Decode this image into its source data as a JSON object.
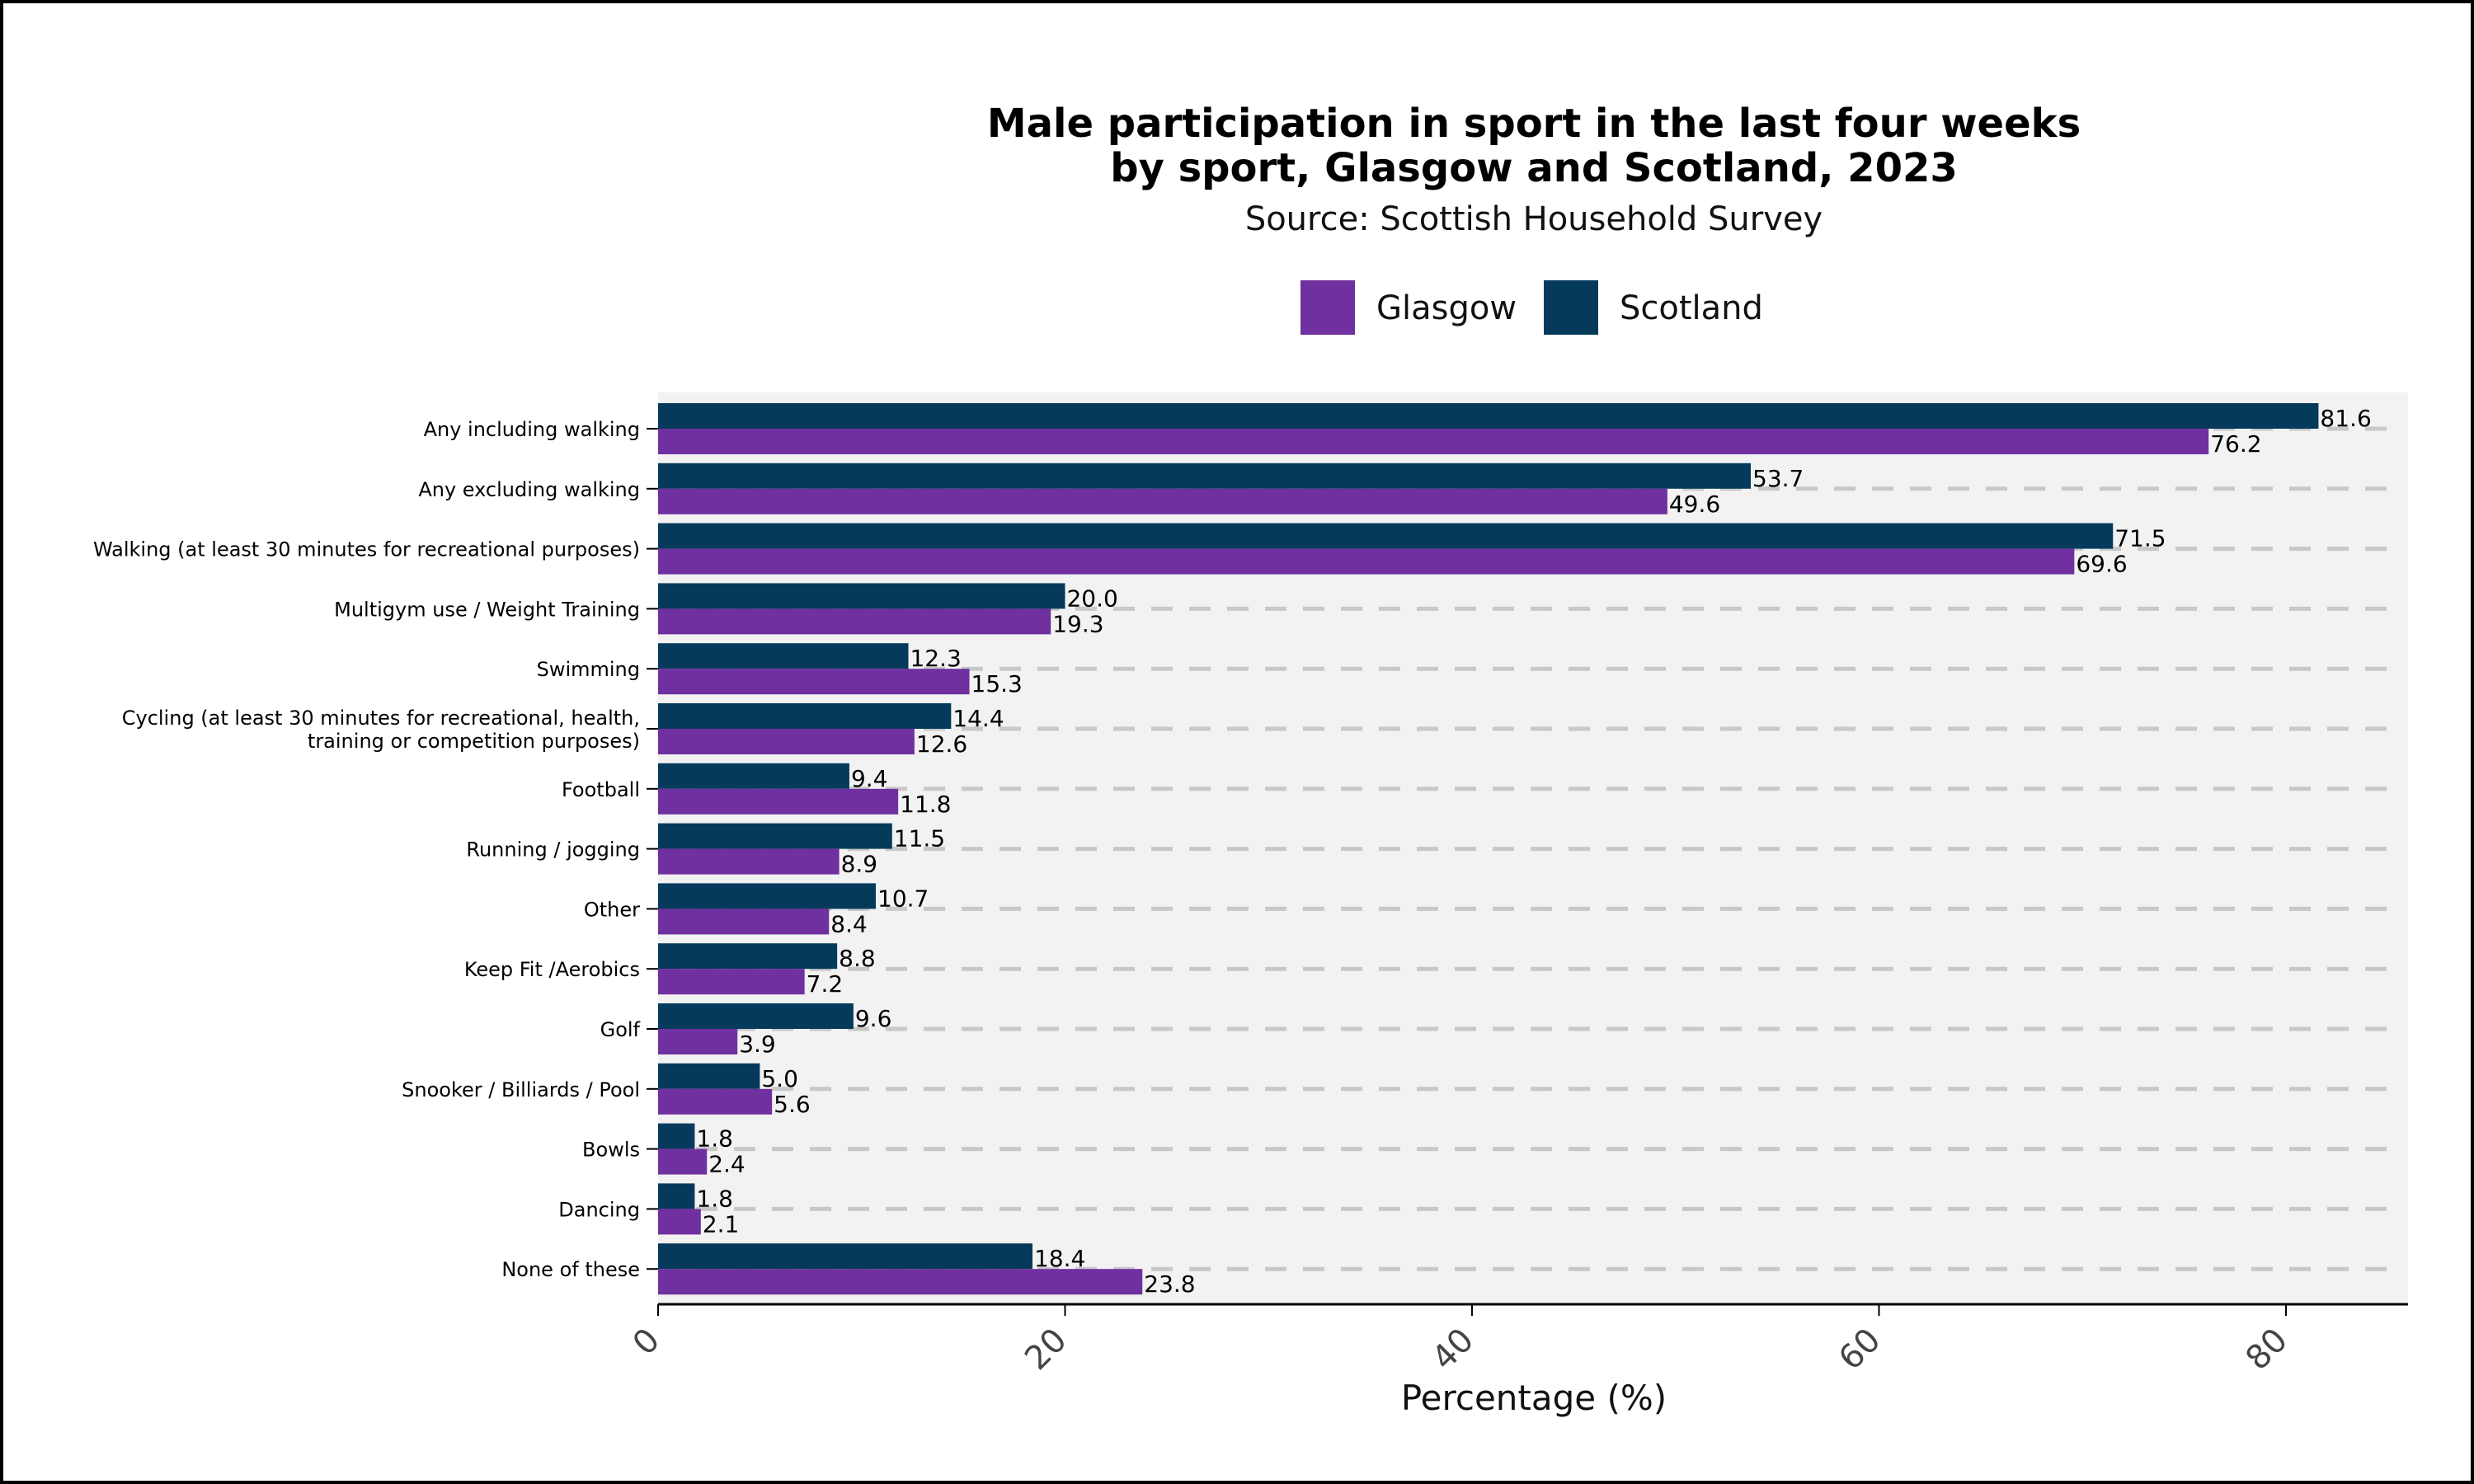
{
  "chart_data": {
    "type": "bar",
    "orientation": "horizontal",
    "title_lines": [
      "Male participation in sport in the last four weeks",
      "by sport, Glasgow and Scotland, 2023"
    ],
    "subtitle": "Source: Scottish Household Survey",
    "xlabel": "Percentage (%)",
    "ylabel": "",
    "xlim": [
      0,
      86
    ],
    "xticks": [
      0,
      20,
      40,
      60,
      80
    ],
    "legend_position": "top-center",
    "grid": "dashed horizontal lines",
    "categories": [
      [
        "Any including walking"
      ],
      [
        "Any excluding walking"
      ],
      [
        "Walking (at least 30 minutes for recreational purposes)"
      ],
      [
        "Multigym use / Weight Training"
      ],
      [
        "Swimming"
      ],
      [
        "Cycling (at least 30 minutes for recreational, health,",
        "training or competition purposes)"
      ],
      [
        "Football"
      ],
      [
        "Running / jogging"
      ],
      [
        "Other"
      ],
      [
        "Keep Fit /Aerobics"
      ],
      [
        "Golf"
      ],
      [
        "Snooker / Billiards / Pool"
      ],
      [
        "Bowls"
      ],
      [
        "Dancing"
      ],
      [
        "None of these"
      ]
    ],
    "series": [
      {
        "name": "Glasgow",
        "color": "#7030a0",
        "values": [
          76.2,
          49.6,
          69.6,
          19.3,
          15.3,
          12.6,
          11.8,
          8.9,
          8.4,
          7.2,
          3.9,
          5.6,
          2.4,
          2.1,
          23.8
        ]
      },
      {
        "name": "Scotland",
        "color": "#063a5b",
        "values": [
          81.6,
          53.7,
          71.5,
          20.0,
          12.3,
          14.4,
          9.4,
          11.5,
          10.7,
          8.8,
          9.6,
          5.0,
          1.8,
          1.8,
          18.4
        ]
      }
    ],
    "value_labels": {
      "Glasgow": [
        "76.2",
        "49.6",
        "69.6",
        "19.3",
        "15.3",
        "12.6",
        "11.8",
        "8.9",
        "8.4",
        "7.2",
        "3.9",
        "5.6",
        "2.4",
        "2.1",
        "23.8"
      ],
      "Scotland": [
        "81.6",
        "53.7",
        "71.5",
        "20.0",
        "12.3",
        "14.4",
        "9.4",
        "11.5",
        "10.7",
        "8.8",
        "9.6",
        "5.0",
        "1.8",
        "1.8",
        "18.4"
      ]
    },
    "colors": {
      "panel_background": "#f2f2f2",
      "grid": "#c8c8c8"
    }
  }
}
